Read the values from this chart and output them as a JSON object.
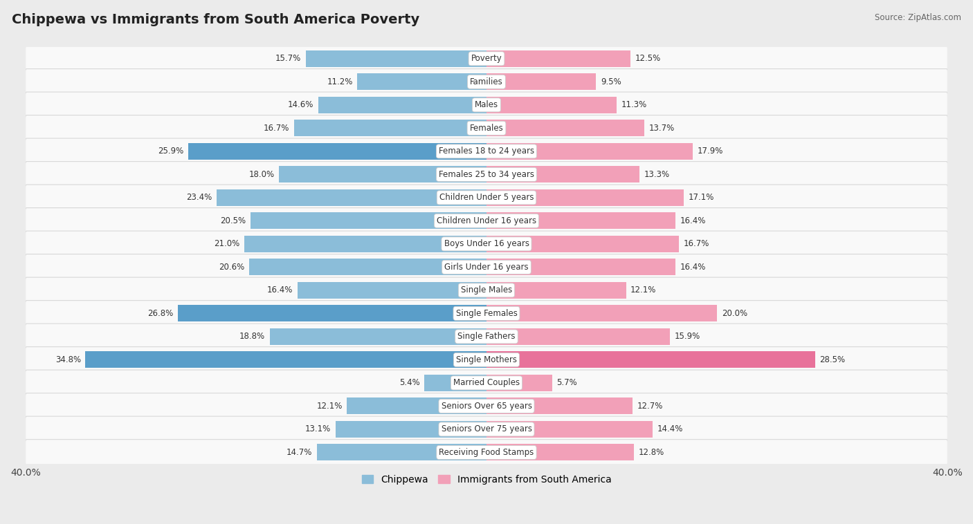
{
  "title": "Chippewa vs Immigrants from South America Poverty",
  "source": "Source: ZipAtlas.com",
  "categories": [
    "Poverty",
    "Families",
    "Males",
    "Females",
    "Females 18 to 24 years",
    "Females 25 to 34 years",
    "Children Under 5 years",
    "Children Under 16 years",
    "Boys Under 16 years",
    "Girls Under 16 years",
    "Single Males",
    "Single Females",
    "Single Fathers",
    "Single Mothers",
    "Married Couples",
    "Seniors Over 65 years",
    "Seniors Over 75 years",
    "Receiving Food Stamps"
  ],
  "chippewa": [
    15.7,
    11.2,
    14.6,
    16.7,
    25.9,
    18.0,
    23.4,
    20.5,
    21.0,
    20.6,
    16.4,
    26.8,
    18.8,
    34.8,
    5.4,
    12.1,
    13.1,
    14.7
  ],
  "immigrants": [
    12.5,
    9.5,
    11.3,
    13.7,
    17.9,
    13.3,
    17.1,
    16.4,
    16.7,
    16.4,
    12.1,
    20.0,
    15.9,
    28.5,
    5.7,
    12.7,
    14.4,
    12.8
  ],
  "chippewa_color": "#8bbdd9",
  "chippewa_highlight_color": "#5a9ec9",
  "immigrants_color": "#f2a0b8",
  "immigrants_highlight_color": "#e8729a",
  "background_color": "#ebebeb",
  "row_bg_color": "#f9f9f9",
  "max_value": 40.0,
  "legend_chippewa": "Chippewa",
  "legend_immigrants": "Immigrants from South America",
  "chippewa_highlight_rows": [
    4,
    11,
    13
  ],
  "immigrants_highlight_rows": [
    13
  ],
  "title_fontsize": 14,
  "label_fontsize": 8.5,
  "value_fontsize": 8.5
}
